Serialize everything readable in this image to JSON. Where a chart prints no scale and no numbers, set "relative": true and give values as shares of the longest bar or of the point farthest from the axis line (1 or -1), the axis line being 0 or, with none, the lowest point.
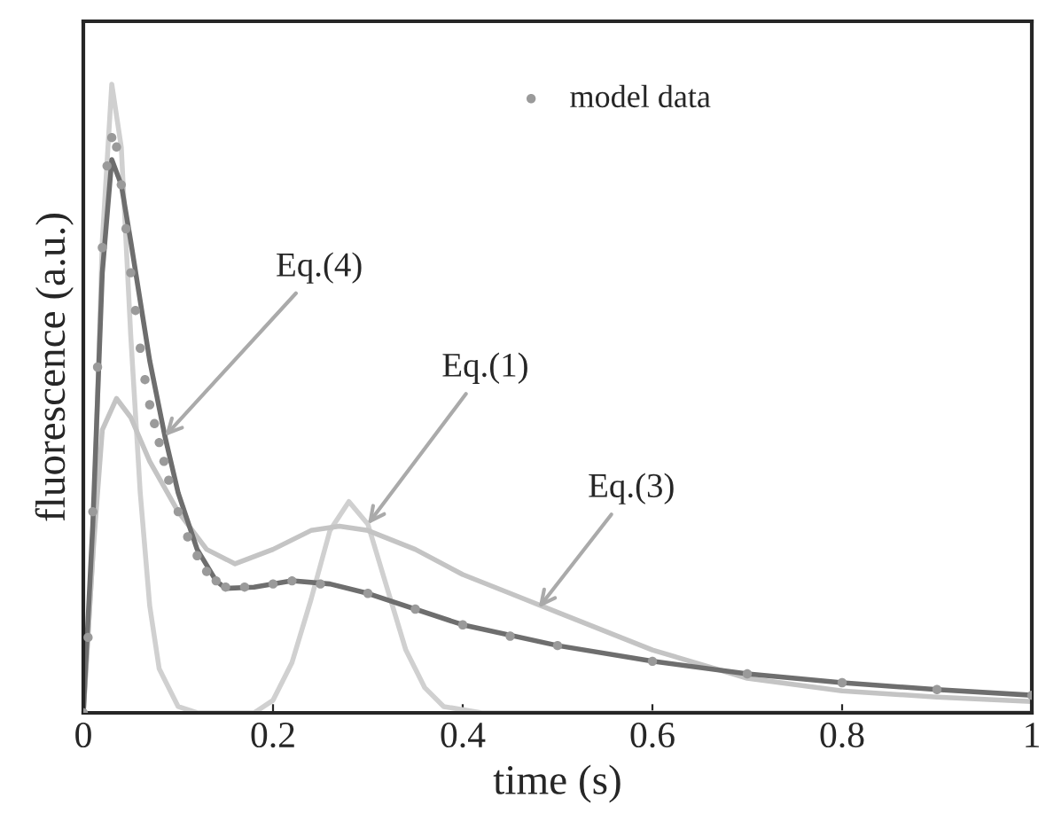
{
  "chart_data": {
    "type": "line",
    "xlabel": "time (s)",
    "ylabel": "fluorescence (a.u.)",
    "relative": true,
    "xlim": [
      0,
      1
    ],
    "xticks": [
      0,
      0.2,
      0.4,
      0.6,
      0.8,
      1
    ],
    "tick_labels": "x",
    "legend": "top",
    "grid": false,
    "series": [
      {
        "color": "#d0d0d0",
        "x": [
          0,
          0.01,
          0.02,
          0.03,
          0.04,
          0.05,
          0.06,
          0.07,
          0.08,
          0.1,
          0.12,
          0.18,
          0.2,
          0.22,
          0.24,
          0.26,
          0.28,
          0.3,
          0.32,
          0.34,
          0.36,
          0.38,
          0.42,
          1.0
        ],
        "values": [
          0,
          0.25,
          0.75,
          1.0,
          0.9,
          0.6,
          0.35,
          0.17,
          0.07,
          0.01,
          0,
          0,
          0.02,
          0.08,
          0.18,
          0.29,
          0.336,
          0.3,
          0.2,
          0.1,
          0.04,
          0.01,
          0,
          0
        ]
      },
      {
        "color": "#c4c4c4",
        "x": [
          0,
          0.01,
          0.02,
          0.035,
          0.05,
          0.07,
          0.1,
          0.13,
          0.16,
          0.2,
          0.24,
          0.27,
          0.3,
          0.35,
          0.4,
          0.45,
          0.5,
          0.6,
          0.7,
          0.8,
          0.9,
          1.0
        ],
        "values": [
          0,
          0.25,
          0.45,
          0.5,
          0.47,
          0.4,
          0.32,
          0.26,
          0.237,
          0.26,
          0.29,
          0.297,
          0.29,
          0.26,
          0.22,
          0.19,
          0.16,
          0.1,
          0.055,
          0.035,
          0.025,
          0.018
        ]
      },
      {
        "type": "scatter",
        "name": "model data",
        "color": "#9a9a9a",
        "marker": "circle",
        "x": [
          0,
          0.005,
          0.01,
          0.015,
          0.02,
          0.025,
          0.03,
          0.035,
          0.04,
          0.045,
          0.05,
          0.055,
          0.06,
          0.065,
          0.07,
          0.075,
          0.08,
          0.085,
          0.09,
          0.1,
          0.11,
          0.12,
          0.13,
          0.14,
          0.15,
          0.17,
          0.2,
          0.22,
          0.25,
          0.3,
          0.35,
          0.4,
          0.45,
          0.5,
          0.6,
          0.7,
          0.8,
          0.9,
          1.0
        ],
        "values": [
          0,
          0.12,
          0.32,
          0.55,
          0.74,
          0.87,
          0.915,
          0.9,
          0.84,
          0.77,
          0.7,
          0.64,
          0.58,
          0.53,
          0.49,
          0.46,
          0.43,
          0.4,
          0.37,
          0.32,
          0.28,
          0.25,
          0.225,
          0.21,
          0.2,
          0.2,
          0.205,
          0.21,
          0.205,
          0.19,
          0.165,
          0.14,
          0.122,
          0.107,
          0.082,
          0.062,
          0.048,
          0.037,
          0.028
        ]
      },
      {
        "color": "#6e6e6e",
        "x": [
          0,
          0.01,
          0.02,
          0.03,
          0.04,
          0.05,
          0.07,
          0.086,
          0.1,
          0.12,
          0.14,
          0.15,
          0.18,
          0.22,
          0.26,
          0.3,
          0.4,
          0.5,
          0.6,
          0.7,
          0.8,
          0.9,
          1.0
        ],
        "values": [
          0,
          0.3,
          0.7,
          0.88,
          0.84,
          0.75,
          0.56,
          0.44,
          0.35,
          0.26,
          0.21,
          0.198,
          0.2,
          0.21,
          0.205,
          0.19,
          0.14,
          0.107,
          0.082,
          0.062,
          0.048,
          0.037,
          0.028
        ]
      }
    ],
    "annotations": [
      {
        "text": "Eq.(4)",
        "x": 0.086,
        "y": 0.44
      },
      {
        "text": "Eq.(1)",
        "x": 0.3,
        "y": 0.3
      },
      {
        "text": "Eq.(3)",
        "x": 0.48,
        "y": 0.167
      }
    ]
  }
}
